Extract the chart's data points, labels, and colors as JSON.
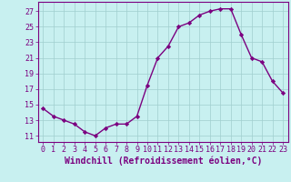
{
  "x": [
    0,
    1,
    2,
    3,
    4,
    5,
    6,
    7,
    8,
    9,
    10,
    11,
    12,
    13,
    14,
    15,
    16,
    17,
    18,
    19,
    20,
    21,
    22,
    23
  ],
  "y": [
    14.5,
    13.5,
    13.0,
    12.5,
    11.5,
    11.0,
    12.0,
    12.5,
    12.5,
    13.5,
    17.5,
    21.0,
    22.5,
    25.0,
    25.5,
    26.5,
    27.0,
    27.3,
    27.3,
    24.0,
    21.0,
    20.5,
    18.0,
    16.5
  ],
  "line_color": "#7b0080",
  "marker": "D",
  "marker_size": 2.2,
  "bg_color": "#c8f0f0",
  "grid_color": "#a0cece",
  "xlabel": "Windchill (Refroidissement éolien,°C)",
  "ylabel_ticks": [
    11,
    13,
    15,
    17,
    19,
    21,
    23,
    25,
    27
  ],
  "xticks": [
    0,
    1,
    2,
    3,
    4,
    5,
    6,
    7,
    8,
    9,
    10,
    11,
    12,
    13,
    14,
    15,
    16,
    17,
    18,
    19,
    20,
    21,
    22,
    23
  ],
  "ylim": [
    10.2,
    28.2
  ],
  "xlim": [
    -0.5,
    23.5
  ],
  "line_width": 1.0,
  "xlabel_fontsize": 7.0,
  "tick_fontsize": 6.0,
  "label_color": "#7b0080",
  "spine_color": "#7b0080"
}
